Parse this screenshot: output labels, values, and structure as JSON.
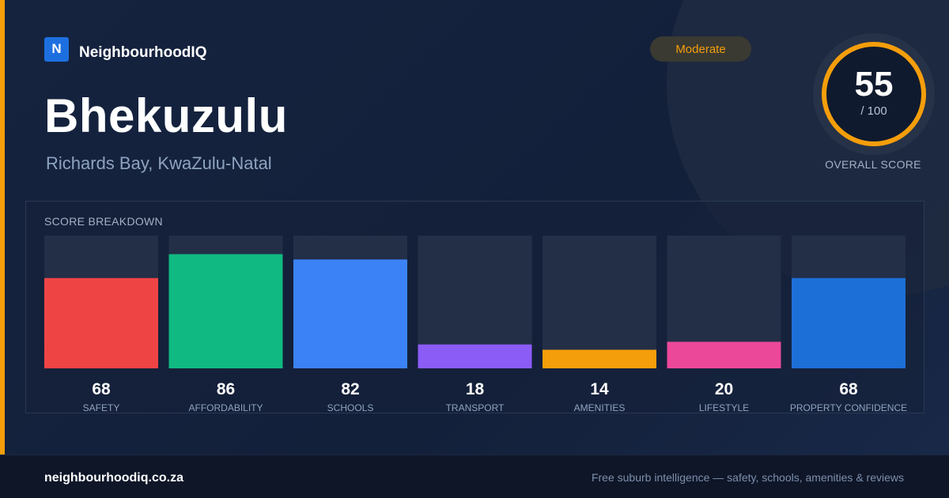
{
  "brand": {
    "logo_letter": "N",
    "name": "NeighbourhoodIQ"
  },
  "suburb": {
    "name": "Bhekuzulu",
    "location": "Richards Bay, KwaZulu-Natal"
  },
  "badge": {
    "label": "Moderate",
    "color": "#f59e0b"
  },
  "overall": {
    "score": "55",
    "max": "/ 100",
    "label": "OVERALL SCORE",
    "fraction": 0.55,
    "ring_color": "#f59e0b"
  },
  "footer": {
    "url": "neighbourhoodiq.co.za",
    "tagline": "Free suburb intelligence — safety, schools, amenities & reviews"
  },
  "chart_data": {
    "type": "bar",
    "title": "SCORE BREAKDOWN",
    "ylim": [
      0,
      100
    ],
    "categories": [
      "SAFETY",
      "AFFORDABILITY",
      "SCHOOLS",
      "TRANSPORT",
      "AMENITIES",
      "LIFESTYLE",
      "PROPERTY CONFIDENCE"
    ],
    "values": [
      68,
      86,
      82,
      18,
      14,
      20,
      68
    ],
    "colors": [
      "#ef4444",
      "#10b981",
      "#3b82f6",
      "#8b5cf6",
      "#f59e0b",
      "#ec4899",
      "#1d6fd8"
    ],
    "track_color": "#222f47",
    "grid": false
  }
}
